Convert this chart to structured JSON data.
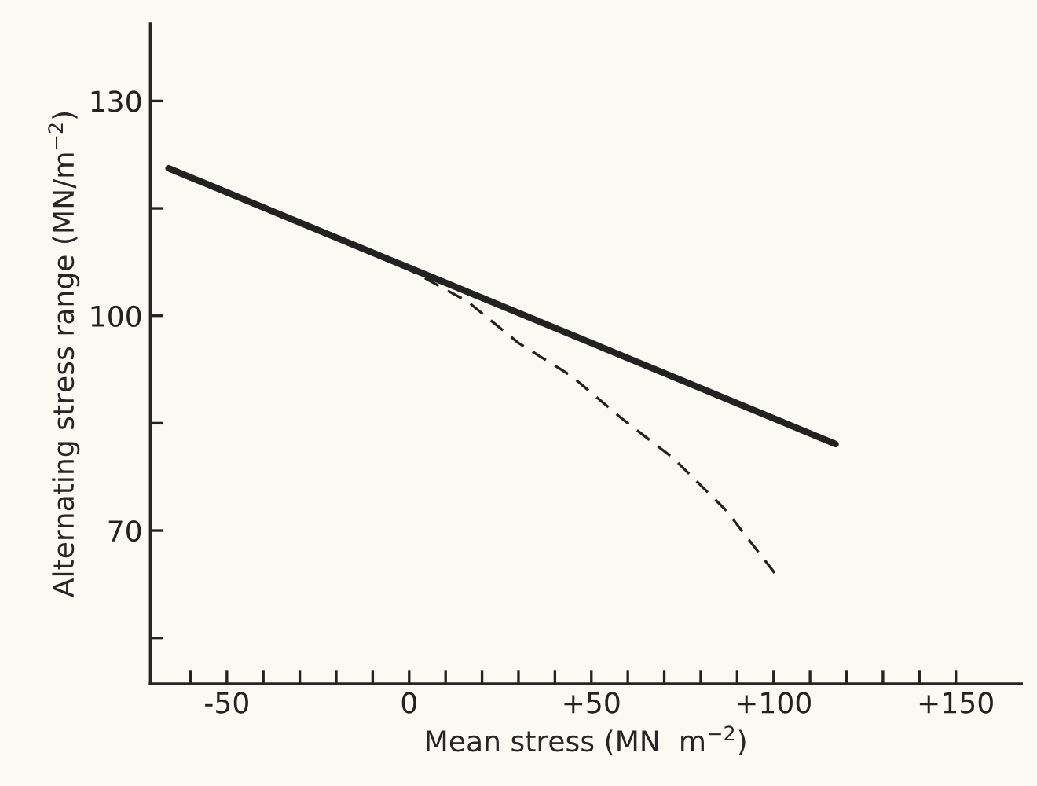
{
  "chart_data": {
    "type": "line",
    "xlabel": "Mean stress (MN  m$^{−2}$)",
    "ylabel": "Alternating stress range (MN/m$^{−2}$)",
    "series": [
      {
        "color": "#222222",
        "line_style": "solid",
        "x": [
          -66,
          0,
          117
        ],
        "values": [
          120.6,
          106.7,
          82.1
        ]
      },
      {
        "color": "#222222",
        "line_style": "dashed",
        "x": [
          -2,
          16,
          30,
          44.5,
          58.5,
          72.5,
          87,
          101
        ],
        "values": [
          107,
          102,
          96.2,
          91.6,
          85.6,
          80.1,
          72.8,
          63.6
        ]
      }
    ],
    "xlim": [
      -71,
      168
    ],
    "ylim": [
      48.6,
      140.8
    ],
    "xticks": [
      {
        "value": -60,
        "label": null
      },
      {
        "value": -50,
        "label": "-50"
      },
      {
        "value": -40,
        "label": null
      },
      {
        "value": -30,
        "label": null
      },
      {
        "value": -20,
        "label": null
      },
      {
        "value": -10,
        "label": null
      },
      {
        "value": 0,
        "label": "0"
      },
      {
        "value": 10,
        "label": null
      },
      {
        "value": 20,
        "label": null
      },
      {
        "value": 30,
        "label": null
      },
      {
        "value": 40,
        "label": null
      },
      {
        "value": 50,
        "label": "+50"
      },
      {
        "value": 60,
        "label": null
      },
      {
        "value": 70,
        "label": null
      },
      {
        "value": 80,
        "label": null
      },
      {
        "value": 90,
        "label": null
      },
      {
        "value": 100,
        "label": "+100"
      },
      {
        "value": 110,
        "label": null
      },
      {
        "value": 120,
        "label": null
      },
      {
        "value": 130,
        "label": null
      },
      {
        "value": 140,
        "label": null
      },
      {
        "value": 150,
        "label": "+150"
      }
    ],
    "yticks": [
      {
        "value": 55,
        "label": null
      },
      70,
      {
        "value": 85,
        "label": null
      },
      100,
      {
        "value": 115,
        "label": null
      },
      130
    ],
    "grid": false,
    "legend": false
  }
}
